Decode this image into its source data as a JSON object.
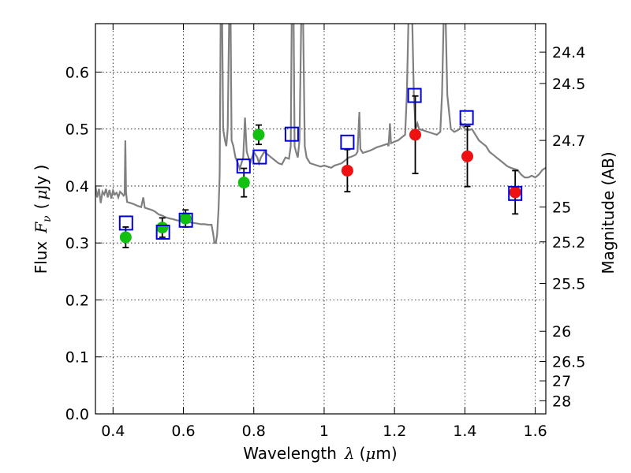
{
  "chart_data": {
    "type": "scatter",
    "xlabel_prefix": "Wavelength",
    "xlabel_symbol": "λ",
    "xlabel_unit_open": "(",
    "xlabel_unit_mu": "μ",
    "xlabel_unit_rest": "m)",
    "ylabel_prefix": "Flux",
    "ylabel_symbol": "F",
    "ylabel_sub": "ν",
    "ylabel_unit_open": "(",
    "ylabel_unit_mu": "μ",
    "ylabel_unit_rest": "Jy )",
    "y2label": "Magnitude (AB)",
    "xlim": [
      0.35,
      1.63
    ],
    "ylim": [
      0.0,
      0.685
    ],
    "x_ticks": [
      0.4,
      0.6,
      0.8,
      1.0,
      1.2,
      1.4,
      1.6
    ],
    "x_tick_labels": [
      "0.4",
      "0.6",
      "0.8",
      "1",
      "1.2",
      "1.4",
      "1.6"
    ],
    "y_ticks": [
      0.0,
      0.1,
      0.2,
      0.3,
      0.4,
      0.5,
      0.6
    ],
    "y_tick_labels": [
      "0.0",
      "0.1",
      "0.2",
      "0.3",
      "0.4",
      "0.5",
      "0.6"
    ],
    "mag_ticks": [
      {
        "flux": 0.635,
        "label": "24.4"
      },
      {
        "flux": 0.58,
        "label": "24.5"
      },
      {
        "flux": 0.48,
        "label": "24.7"
      },
      {
        "flux": 0.363,
        "label": "25"
      },
      {
        "flux": 0.302,
        "label": "25.2"
      },
      {
        "flux": 0.229,
        "label": "25.5"
      },
      {
        "flux": 0.145,
        "label": "26"
      },
      {
        "flux": 0.092,
        "label": "26.5"
      },
      {
        "flux": 0.058,
        "label": "27"
      },
      {
        "flux": 0.023,
        "label": "28"
      }
    ],
    "grid": true,
    "colors": {
      "model": "#808080",
      "green": "#11c011",
      "red": "#ee1111",
      "square": "#0000dd",
      "errorbar": "#000000"
    },
    "series": [
      {
        "name": "model spectrum",
        "kind": "line",
        "points": [
          [
            0.35,
            0.4
          ],
          [
            0.355,
            0.38
          ],
          [
            0.36,
            0.395
          ],
          [
            0.365,
            0.37
          ],
          [
            0.37,
            0.39
          ],
          [
            0.375,
            0.385
          ],
          [
            0.38,
            0.395
          ],
          [
            0.385,
            0.38
          ],
          [
            0.39,
            0.393
          ],
          [
            0.395,
            0.378
          ],
          [
            0.4,
            0.392
          ],
          [
            0.405,
            0.385
          ],
          [
            0.41,
            0.388
          ],
          [
            0.415,
            0.38
          ],
          [
            0.42,
            0.39
          ],
          [
            0.425,
            0.387
          ],
          [
            0.43,
            0.383
          ],
          [
            0.433,
            0.385
          ],
          [
            0.435,
            0.48
          ],
          [
            0.437,
            0.39
          ],
          [
            0.44,
            0.372
          ],
          [
            0.45,
            0.37
          ],
          [
            0.46,
            0.368
          ],
          [
            0.47,
            0.365
          ],
          [
            0.48,
            0.363
          ],
          [
            0.486,
            0.38
          ],
          [
            0.49,
            0.362
          ],
          [
            0.5,
            0.36
          ],
          [
            0.51,
            0.358
          ],
          [
            0.52,
            0.355
          ],
          [
            0.53,
            0.35
          ],
          [
            0.54,
            0.348
          ],
          [
            0.55,
            0.345
          ],
          [
            0.56,
            0.343
          ],
          [
            0.57,
            0.342
          ],
          [
            0.58,
            0.34
          ],
          [
            0.59,
            0.339
          ],
          [
            0.6,
            0.338
          ],
          [
            0.61,
            0.337
          ],
          [
            0.62,
            0.336
          ],
          [
            0.63,
            0.335
          ],
          [
            0.64,
            0.334
          ],
          [
            0.65,
            0.333
          ],
          [
            0.66,
            0.333
          ],
          [
            0.67,
            0.332
          ],
          [
            0.68,
            0.332
          ],
          [
            0.685,
            0.315
          ],
          [
            0.688,
            0.3
          ],
          [
            0.692,
            0.3
          ],
          [
            0.696,
            0.315
          ],
          [
            0.7,
            0.36
          ],
          [
            0.703,
            0.42
          ],
          [
            0.706,
            0.7
          ],
          [
            0.71,
            0.7
          ],
          [
            0.713,
            0.5
          ],
          [
            0.718,
            0.48
          ],
          [
            0.722,
            0.47
          ],
          [
            0.726,
            0.5
          ],
          [
            0.73,
            0.69
          ],
          [
            0.734,
            0.7
          ],
          [
            0.737,
            0.48
          ],
          [
            0.742,
            0.47
          ],
          [
            0.748,
            0.45
          ],
          [
            0.755,
            0.44
          ],
          [
            0.76,
            0.43
          ],
          [
            0.765,
            0.44
          ],
          [
            0.77,
            0.45
          ],
          [
            0.775,
            0.52
          ],
          [
            0.78,
            0.46
          ],
          [
            0.785,
            0.45
          ],
          [
            0.79,
            0.44
          ],
          [
            0.8,
            0.46
          ],
          [
            0.81,
            0.45
          ],
          [
            0.815,
            0.44
          ],
          [
            0.82,
            0.45
          ],
          [
            0.825,
            0.455
          ],
          [
            0.83,
            0.46
          ],
          [
            0.84,
            0.455
          ],
          [
            0.85,
            0.45
          ],
          [
            0.86,
            0.445
          ],
          [
            0.87,
            0.44
          ],
          [
            0.88,
            0.438
          ],
          [
            0.89,
            0.45
          ],
          [
            0.9,
            0.448
          ],
          [
            0.905,
            0.47
          ],
          [
            0.908,
            0.7
          ],
          [
            0.913,
            0.7
          ],
          [
            0.916,
            0.47
          ],
          [
            0.92,
            0.46
          ],
          [
            0.925,
            0.45
          ],
          [
            0.93,
            0.48
          ],
          [
            0.935,
            0.7
          ],
          [
            0.94,
            0.7
          ],
          [
            0.945,
            0.47
          ],
          [
            0.95,
            0.45
          ],
          [
            0.96,
            0.44
          ],
          [
            0.97,
            0.438
          ],
          [
            0.98,
            0.436
          ],
          [
            0.99,
            0.434
          ],
          [
            1.0,
            0.436
          ],
          [
            1.01,
            0.434
          ],
          [
            1.02,
            0.432
          ],
          [
            1.03,
            0.436
          ],
          [
            1.04,
            0.438
          ],
          [
            1.05,
            0.44
          ],
          [
            1.06,
            0.445
          ],
          [
            1.07,
            0.45
          ],
          [
            1.08,
            0.452
          ],
          [
            1.09,
            0.455
          ],
          [
            1.095,
            0.46
          ],
          [
            1.1,
            0.53
          ],
          [
            1.103,
            0.465
          ],
          [
            1.11,
            0.458
          ],
          [
            1.12,
            0.46
          ],
          [
            1.13,
            0.462
          ],
          [
            1.14,
            0.465
          ],
          [
            1.15,
            0.468
          ],
          [
            1.16,
            0.47
          ],
          [
            1.17,
            0.472
          ],
          [
            1.18,
            0.474
          ],
          [
            1.183,
            0.47
          ],
          [
            1.187,
            0.51
          ],
          [
            1.19,
            0.475
          ],
          [
            1.2,
            0.478
          ],
          [
            1.21,
            0.48
          ],
          [
            1.22,
            0.485
          ],
          [
            1.23,
            0.49
          ],
          [
            1.235,
            0.56
          ],
          [
            1.24,
            0.7
          ],
          [
            1.25,
            0.7
          ],
          [
            1.255,
            0.56
          ],
          [
            1.26,
            0.5
          ],
          [
            1.265,
            0.51
          ],
          [
            1.27,
            0.5
          ],
          [
            1.28,
            0.498
          ],
          [
            1.29,
            0.496
          ],
          [
            1.3,
            0.494
          ],
          [
            1.31,
            0.492
          ],
          [
            1.32,
            0.49
          ],
          [
            1.33,
            0.495
          ],
          [
            1.335,
            0.56
          ],
          [
            1.34,
            0.7
          ],
          [
            1.345,
            0.7
          ],
          [
            1.35,
            0.56
          ],
          [
            1.36,
            0.5
          ],
          [
            1.37,
            0.495
          ],
          [
            1.38,
            0.498
          ],
          [
            1.385,
            0.5
          ],
          [
            1.39,
            0.51
          ],
          [
            1.4,
            0.5
          ],
          [
            1.41,
            0.498
          ],
          [
            1.42,
            0.5
          ],
          [
            1.43,
            0.49
          ],
          [
            1.44,
            0.48
          ],
          [
            1.45,
            0.475
          ],
          [
            1.46,
            0.47
          ],
          [
            1.47,
            0.46
          ],
          [
            1.48,
            0.455
          ],
          [
            1.49,
            0.45
          ],
          [
            1.5,
            0.445
          ],
          [
            1.51,
            0.44
          ],
          [
            1.52,
            0.435
          ],
          [
            1.53,
            0.432
          ],
          [
            1.54,
            0.43
          ],
          [
            1.55,
            0.428
          ],
          [
            1.56,
            0.42
          ],
          [
            1.57,
            0.415
          ],
          [
            1.58,
            0.415
          ],
          [
            1.59,
            0.418
          ],
          [
            1.6,
            0.415
          ],
          [
            1.61,
            0.42
          ],
          [
            1.62,
            0.428
          ],
          [
            1.63,
            0.432
          ]
        ]
      },
      {
        "name": "green points",
        "kind": "points",
        "points": [
          {
            "x": 0.436,
            "y": 0.31,
            "err": 0.018
          },
          {
            "x": 0.54,
            "y": 0.327,
            "err": 0.017
          },
          {
            "x": 0.606,
            "y": 0.343,
            "err": 0.015
          },
          {
            "x": 0.772,
            "y": 0.406,
            "err": 0.025
          },
          {
            "x": 0.814,
            "y": 0.49,
            "err": 0.017
          }
        ]
      },
      {
        "name": "red points",
        "kind": "points",
        "points": [
          {
            "x": 1.066,
            "y": 0.427,
            "err": 0.037
          },
          {
            "x": 1.259,
            "y": 0.49,
            "err": 0.068
          },
          {
            "x": 1.407,
            "y": 0.452,
            "err": 0.053
          },
          {
            "x": 1.543,
            "y": 0.389,
            "err": 0.038
          }
        ]
      },
      {
        "name": "model photometry",
        "kind": "squares",
        "points": [
          {
            "x": 0.437,
            "y": 0.335
          },
          {
            "x": 0.542,
            "y": 0.319
          },
          {
            "x": 0.607,
            "y": 0.34
          },
          {
            "x": 0.771,
            "y": 0.435
          },
          {
            "x": 0.817,
            "y": 0.451
          },
          {
            "x": 0.908,
            "y": 0.491
          },
          {
            "x": 1.066,
            "y": 0.477
          },
          {
            "x": 1.257,
            "y": 0.559
          },
          {
            "x": 1.405,
            "y": 0.52
          },
          {
            "x": 1.543,
            "y": 0.387
          }
        ]
      }
    ]
  }
}
